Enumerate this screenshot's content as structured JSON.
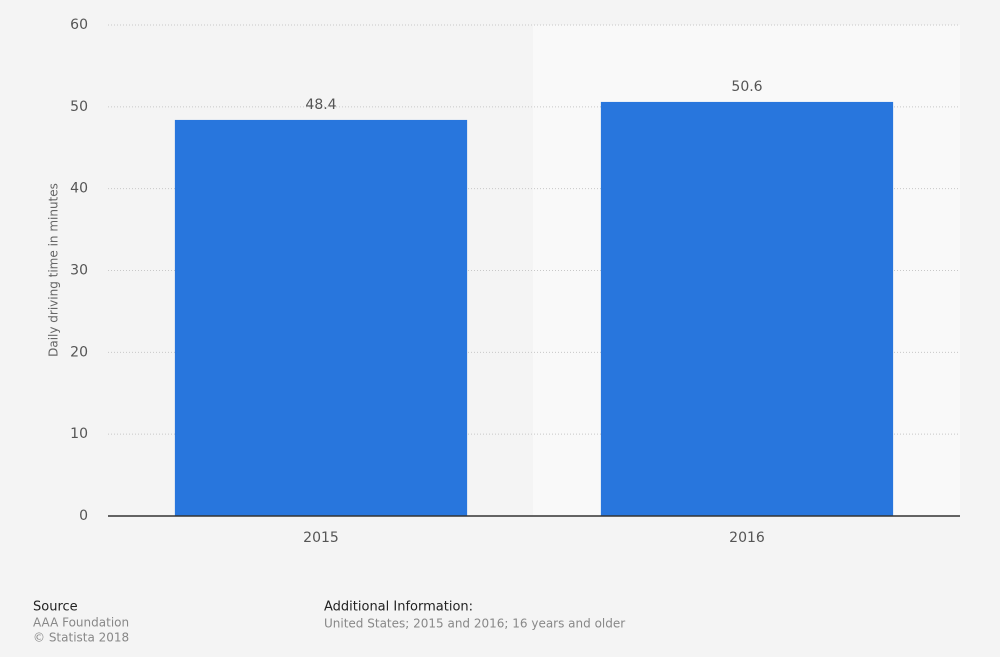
{
  "chart_data": {
    "type": "bar",
    "y_label": "Daily driving time in minutes",
    "categories": [
      "2015",
      "2016"
    ],
    "values": [
      48.4,
      50.6
    ],
    "color": "#2876dd",
    "ylim": [
      0,
      60
    ],
    "yticks": [
      0,
      10,
      20,
      30,
      40,
      50,
      60
    ],
    "grid": true
  },
  "footer": {
    "source_title": "Source",
    "source": "AAA Foundation",
    "copyright": "© Statista 2018",
    "info_title": "Additional Information:",
    "info": "United States; 2015 and 2016; 16 years and older"
  }
}
